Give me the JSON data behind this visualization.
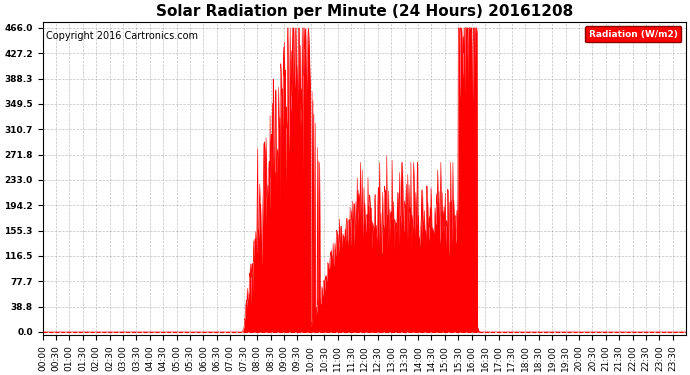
{
  "title": "Solar Radiation per Minute (24 Hours) 20161208",
  "copyright": "Copyright 2016 Cartronics.com",
  "legend_label": "Radiation (W/m2)",
  "yticks": [
    0.0,
    38.8,
    77.7,
    116.5,
    155.3,
    194.2,
    233.0,
    271.8,
    310.7,
    349.5,
    388.3,
    427.2,
    466.0
  ],
  "ymax": 466.0,
  "bar_color": "#ff0000",
  "background_color": "#ffffff",
  "grid_color": "#999999",
  "dashed_line_color": "#ff0000",
  "title_fontsize": 11,
  "copyright_fontsize": 7,
  "tick_fontsize": 6.5,
  "figwidth": 6.9,
  "figheight": 3.75,
  "dpi": 100,
  "sunrise": 447,
  "sunset": 978,
  "peak_minute": 595,
  "peak_value": 466.0
}
